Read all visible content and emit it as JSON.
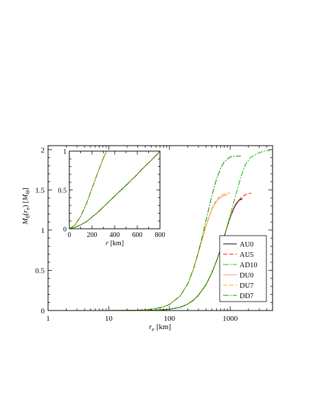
{
  "chart_data": {
    "type": "line",
    "main": {
      "x_scale": "log",
      "xlim": [
        1,
        5000
      ],
      "ylim": [
        0,
        2.05
      ],
      "xlabel": {
        "symbol": "r",
        "sub": "e",
        "unit": "[km]"
      },
      "ylabel": {
        "m": "M",
        "m_sub": "0",
        "r": "r",
        "r_sub": "e",
        "unit_m": "M",
        "unit_sub": "Θ"
      },
      "x_ticks": [
        {
          "value": 1,
          "label": "1"
        },
        {
          "value": 10,
          "label": "10"
        },
        {
          "value": 100,
          "label": "100"
        },
        {
          "value": 1000,
          "label": "1000"
        }
      ],
      "y_ticks": [
        {
          "value": 0,
          "label": "0"
        },
        {
          "value": 0.5,
          "label": "0.5"
        },
        {
          "value": 1,
          "label": "1"
        },
        {
          "value": 1.5,
          "label": "1.5"
        },
        {
          "value": 2,
          "label": "2"
        }
      ],
      "legend": {
        "placement": "lower-right"
      },
      "series": [
        {
          "name": "AU0",
          "color": "#000000",
          "dash": "none",
          "x": [
            10,
            30,
            60,
            100,
            150,
            200,
            250,
            300,
            400,
            500,
            600,
            700,
            800,
            900,
            1000,
            1200,
            1400,
            1600
          ],
          "y": [
            0.0,
            0.001,
            0.005,
            0.015,
            0.04,
            0.08,
            0.13,
            0.19,
            0.32,
            0.47,
            0.62,
            0.77,
            0.92,
            1.05,
            1.16,
            1.3,
            1.37,
            1.39
          ]
        },
        {
          "name": "AU5",
          "color": "#ff0000",
          "dash": "6,3",
          "x": [
            10,
            30,
            60,
            100,
            150,
            200,
            250,
            300,
            400,
            500,
            600,
            700,
            800,
            900,
            1000,
            1200,
            1500,
            1800,
            2200
          ],
          "y": [
            0.0,
            0.001,
            0.005,
            0.015,
            0.04,
            0.08,
            0.13,
            0.19,
            0.32,
            0.47,
            0.62,
            0.77,
            0.92,
            1.05,
            1.16,
            1.31,
            1.4,
            1.44,
            1.46
          ]
        },
        {
          "name": "AD10",
          "color": "#00cc00",
          "dash": "8,2,2,2",
          "x": [
            10,
            30,
            60,
            100,
            150,
            200,
            250,
            300,
            400,
            500,
            600,
            700,
            800,
            1000,
            1200,
            1500,
            1800,
            2200,
            2800,
            3500,
            4500
          ],
          "y": [
            0.0,
            0.001,
            0.005,
            0.015,
            0.04,
            0.08,
            0.13,
            0.19,
            0.32,
            0.47,
            0.62,
            0.77,
            0.92,
            1.18,
            1.4,
            1.66,
            1.82,
            1.91,
            1.95,
            1.98,
            1.99
          ]
        },
        {
          "name": "DU0",
          "color": "#ff8c82",
          "dash": "none",
          "x": [
            10,
            30,
            50,
            80,
            100,
            150,
            200,
            250,
            300,
            350,
            400,
            500,
            600,
            700,
            800,
            900
          ],
          "y": [
            0.0,
            0.004,
            0.015,
            0.045,
            0.075,
            0.18,
            0.33,
            0.52,
            0.72,
            0.9,
            1.05,
            1.26,
            1.36,
            1.41,
            1.43,
            1.44
          ]
        },
        {
          "name": "DU7",
          "color": "#ffa500",
          "dash": "6,3",
          "x": [
            10,
            30,
            50,
            80,
            100,
            150,
            200,
            250,
            300,
            350,
            400,
            500,
            600,
            700,
            800,
            900,
            1000
          ],
          "y": [
            0.0,
            0.004,
            0.015,
            0.045,
            0.075,
            0.18,
            0.33,
            0.52,
            0.72,
            0.9,
            1.05,
            1.27,
            1.38,
            1.43,
            1.45,
            1.46,
            1.46
          ]
        },
        {
          "name": "DD7",
          "color": "#009900",
          "dash": "8,2,2,2",
          "x": [
            10,
            30,
            50,
            80,
            100,
            150,
            200,
            250,
            300,
            350,
            400,
            500,
            600,
            700,
            800,
            1000,
            1200,
            1500
          ],
          "y": [
            0.0,
            0.004,
            0.015,
            0.045,
            0.075,
            0.18,
            0.33,
            0.52,
            0.73,
            0.93,
            1.12,
            1.43,
            1.64,
            1.77,
            1.85,
            1.91,
            1.92,
            1.92
          ]
        }
      ]
    },
    "inset": {
      "x_scale": "linear",
      "xlim": [
        0,
        800
      ],
      "ylim": [
        0,
        1
      ],
      "xlabel": {
        "symbol": "r",
        "unit": "[km]"
      },
      "x_ticks": [
        {
          "value": 0,
          "label": "0"
        },
        {
          "value": 200,
          "label": "200"
        },
        {
          "value": 400,
          "label": "400"
        },
        {
          "value": 600,
          "label": "600"
        },
        {
          "value": 800,
          "label": "800"
        }
      ],
      "y_ticks": [
        {
          "value": 0,
          "label": "0"
        },
        {
          "value": 0.5,
          "label": "0.5"
        },
        {
          "value": 1,
          "label": "1"
        }
      ],
      "series": [
        {
          "name": "AU0",
          "color": "#000000",
          "dash": "none",
          "x": [
            0,
            50,
            100,
            150,
            200,
            250,
            300,
            350,
            400,
            450,
            500,
            550,
            600,
            650,
            700,
            750,
            790
          ],
          "y": [
            0.0,
            0.02,
            0.05,
            0.09,
            0.15,
            0.21,
            0.28,
            0.35,
            0.42,
            0.49,
            0.56,
            0.63,
            0.7,
            0.78,
            0.85,
            0.92,
            0.98
          ]
        },
        {
          "name": "AU5",
          "color": "#ff0000",
          "dash": "6,3",
          "x": [
            0,
            50,
            100,
            150,
            200,
            250,
            300,
            350,
            400,
            450,
            500,
            550,
            600,
            650,
            700,
            750,
            795
          ],
          "y": [
            0.0,
            0.02,
            0.05,
            0.09,
            0.15,
            0.21,
            0.28,
            0.35,
            0.42,
            0.49,
            0.56,
            0.63,
            0.7,
            0.78,
            0.85,
            0.92,
            0.99
          ]
        },
        {
          "name": "AD10",
          "color": "#00cc00",
          "dash": "8,2,2,2",
          "x": [
            0,
            50,
            100,
            150,
            200,
            250,
            300,
            350,
            400,
            450,
            500,
            550,
            600,
            650,
            700,
            750,
            800
          ],
          "y": [
            0.0,
            0.02,
            0.05,
            0.09,
            0.15,
            0.21,
            0.28,
            0.35,
            0.42,
            0.49,
            0.56,
            0.63,
            0.7,
            0.78,
            0.85,
            0.92,
            1.0
          ]
        },
        {
          "name": "DU0",
          "color": "#ff8c82",
          "dash": "none",
          "x": [
            0,
            50,
            100,
            150,
            200,
            250,
            300,
            330
          ],
          "y": [
            0.0,
            0.05,
            0.16,
            0.32,
            0.52,
            0.72,
            0.91,
            1.0
          ]
        },
        {
          "name": "DU7",
          "color": "#ffa500",
          "dash": "6,3",
          "x": [
            0,
            50,
            100,
            150,
            200,
            250,
            300,
            330
          ],
          "y": [
            0.0,
            0.05,
            0.16,
            0.32,
            0.52,
            0.72,
            0.91,
            1.0
          ]
        },
        {
          "name": "DD7",
          "color": "#009900",
          "dash": "8,2,2,2",
          "x": [
            0,
            50,
            100,
            150,
            200,
            250,
            300,
            330
          ],
          "y": [
            0.0,
            0.05,
            0.16,
            0.32,
            0.52,
            0.72,
            0.91,
            1.0
          ]
        }
      ]
    }
  }
}
